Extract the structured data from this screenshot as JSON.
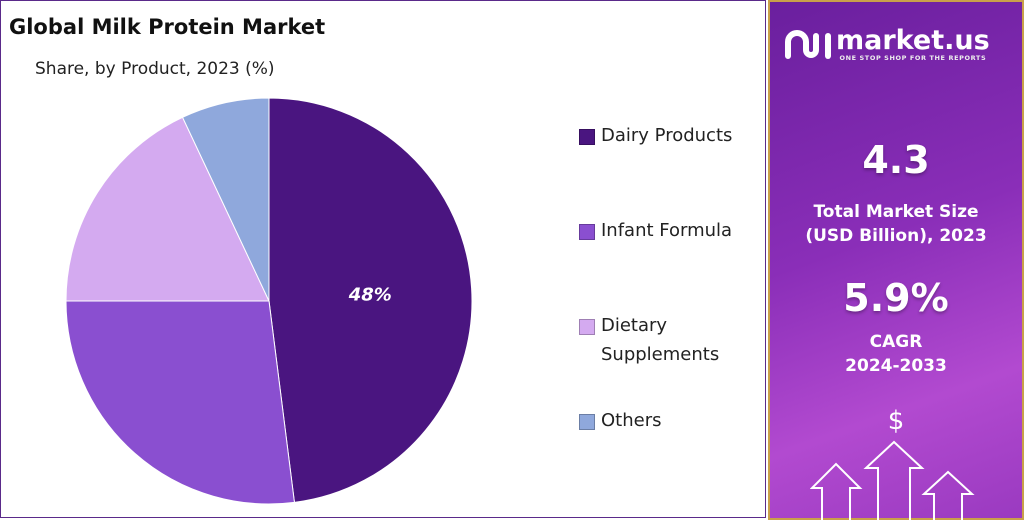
{
  "chart_data": {
    "type": "pie",
    "title": "Global Milk Protein Market",
    "subtitle": "Share, by Product, 2023 (%)",
    "categories": [
      "Dairy Products",
      "Infant Formula",
      "Dietary Supplements",
      "Others"
    ],
    "legend_labels": [
      [
        "Dairy Products"
      ],
      [
        "Infant Formula"
      ],
      [
        "Dietary",
        "Supplements"
      ],
      [
        "Others"
      ]
    ],
    "values": [
      48,
      27,
      18,
      7
    ],
    "colors": [
      "#4a1580",
      "#8a4fd0",
      "#d4aaf0",
      "#8fa8dc"
    ],
    "data_labels": [
      "48%",
      "",
      "",
      ""
    ],
    "start_angle": "top, clockwise",
    "legend_placement": "right"
  },
  "side": {
    "logo_text": "market.us",
    "logo_tagline": "ONE STOP SHOP FOR THE REPORTS",
    "market_size": "4.3",
    "market_size_label_1": "Total Market Size",
    "market_size_label_2": "(USD Billion), 2023",
    "cagr": "5.9%",
    "cagr_label_1": "CAGR",
    "cagr_label_2": "2024-2033",
    "dollar": "$"
  }
}
